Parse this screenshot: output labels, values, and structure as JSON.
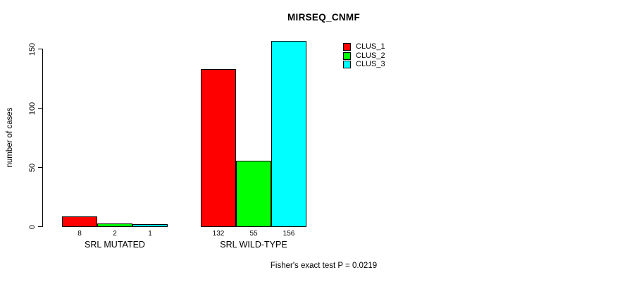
{
  "title": "MIRSEQ_CNMF",
  "y_axis_title": "number of cases",
  "footer_note": "Fisher's exact test P = 0.0219",
  "colors": {
    "clus_1": "#ff0000",
    "clus_2": "#00ff00",
    "clus_3": "#00ffff",
    "axis": "#000000",
    "background": "#ffffff"
  },
  "chart_data": {
    "type": "bar",
    "title": "MIRSEQ_CNMF",
    "xlabel": "",
    "ylabel": "number of cases",
    "categories": [
      "SRL MUTATED",
      "SRL WILD-TYPE"
    ],
    "series": [
      {
        "name": "CLUS_1",
        "color": "#ff0000",
        "values": [
          8,
          132
        ]
      },
      {
        "name": "CLUS_2",
        "color": "#00ff00",
        "values": [
          2,
          55
        ]
      },
      {
        "name": "CLUS_3",
        "color": "#00ffff",
        "values": [
          1,
          156
        ]
      }
    ],
    "bar_value_labels": [
      [
        "8",
        "2",
        "1"
      ],
      [
        "132",
        "55",
        "156"
      ]
    ],
    "yticks": [
      0,
      50,
      100,
      150
    ],
    "ylim": [
      0,
      160
    ],
    "grid": false,
    "legend_position": "top-right-inside",
    "annotation": "Fisher's exact test P = 0.0219"
  }
}
